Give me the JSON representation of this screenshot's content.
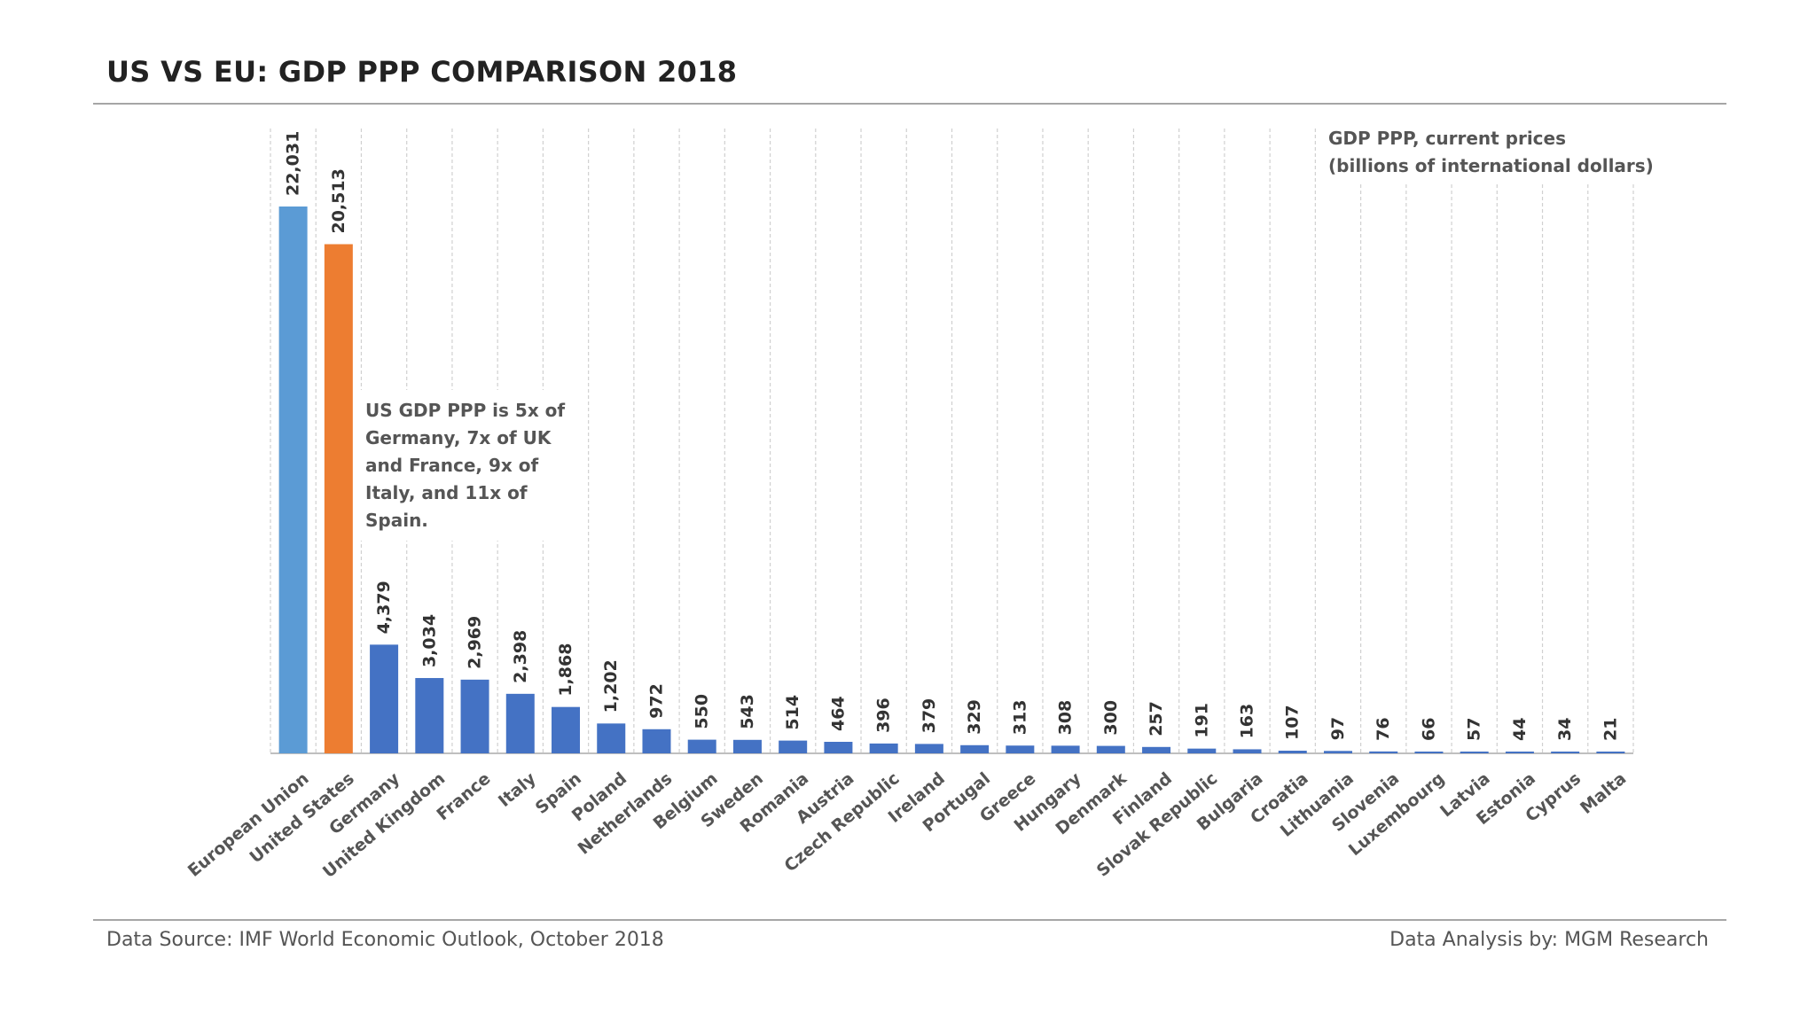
{
  "title": "US VS EU: GDP PPP COMPARISON 2018",
  "footer": {
    "source": "Data Source: IMF World Economic Outlook, October 2018",
    "credit": "Data Analysis by: MGM Research"
  },
  "colors": {
    "eu": "#5b9bd5",
    "us": "#ed7d31",
    "country": "#4472c4",
    "grid": "#d0d0d0"
  },
  "chart_data": {
    "type": "bar",
    "title": "US VS EU: GDP PPP COMPARISON 2018",
    "unit_note": [
      "GDP PPP, current prices",
      "(billions of international dollars)"
    ],
    "annotation": [
      "US GDP PPP is 5x of",
      "Germany, 7x of UK",
      "and France, 9x of",
      "Italy, and 11x of",
      "Spain."
    ],
    "categories": [
      "European Union",
      "United States",
      "Germany",
      "United Kingdom",
      "France",
      "Italy",
      "Spain",
      "Poland",
      "Netherlands",
      "Belgium",
      "Sweden",
      "Romania",
      "Austria",
      "Czech Republic",
      "Ireland",
      "Portugal",
      "Greece",
      "Hungary",
      "Denmark",
      "Finland",
      "Slovak Republic",
      "Bulgaria",
      "Croatia",
      "Lithuania",
      "Slovenia",
      "Luxembourg",
      "Latvia",
      "Estonia",
      "Cyprus",
      "Malta"
    ],
    "values": [
      22031,
      20513,
      4379,
      3034,
      2969,
      2398,
      1868,
      1202,
      972,
      550,
      543,
      514,
      464,
      396,
      379,
      329,
      313,
      308,
      300,
      257,
      191,
      163,
      107,
      97,
      76,
      66,
      57,
      44,
      34,
      21
    ],
    "value_labels": [
      "22,031",
      "20,513",
      "4,379",
      "3,034",
      "2,969",
      "2,398",
      "1,868",
      "1,202",
      "972",
      "550",
      "543",
      "514",
      "464",
      "396",
      "379",
      "329",
      "313",
      "308",
      "300",
      "257",
      "191",
      "163",
      "107",
      "97",
      "76",
      "66",
      "57",
      "44",
      "34",
      "21"
    ],
    "ylim": [
      0,
      22031
    ],
    "grid": "vertical dashed separators",
    "legend": "none"
  }
}
